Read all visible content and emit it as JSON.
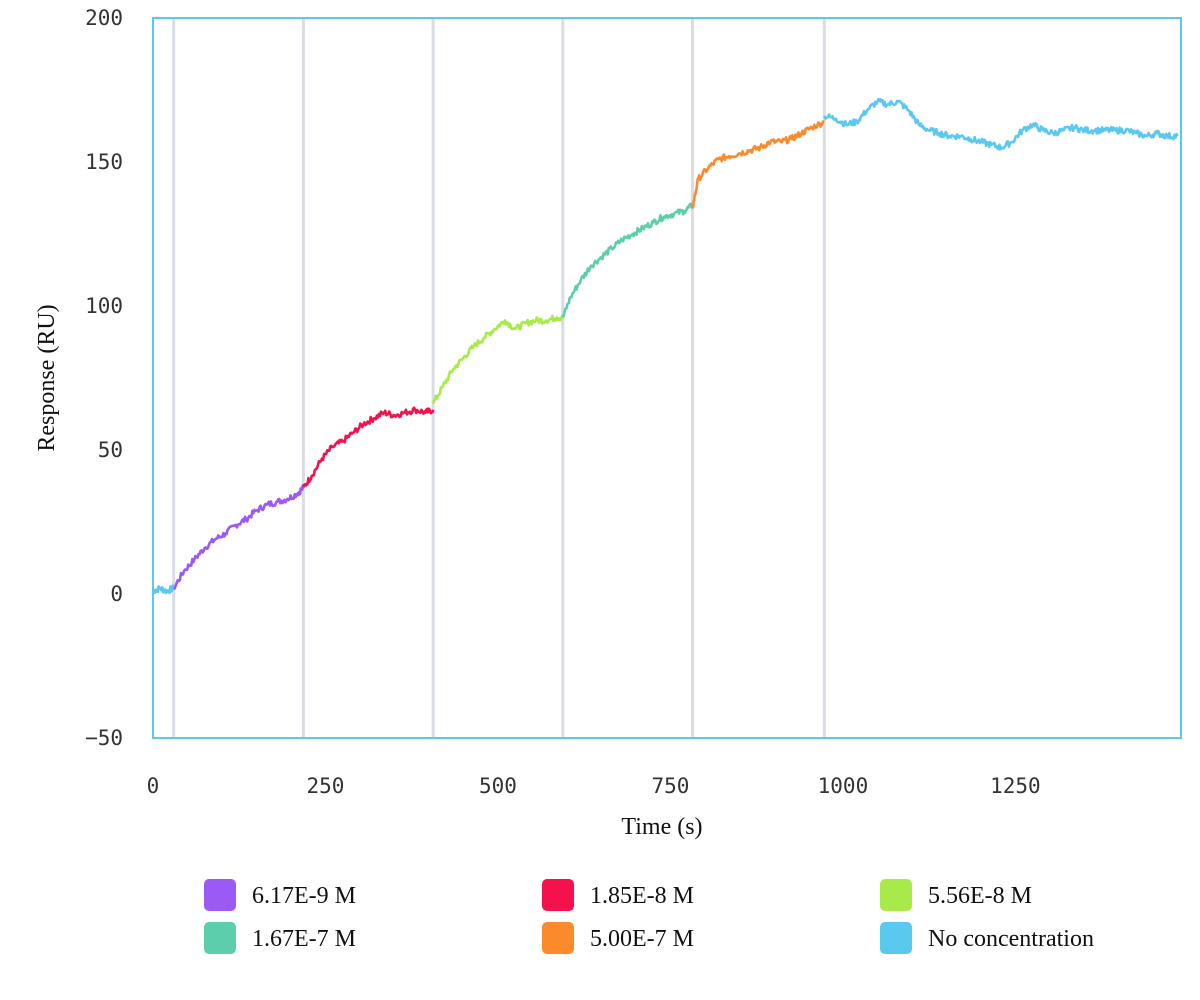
{
  "chart_data": {
    "type": "line",
    "title": "",
    "xlabel": "Time (s)",
    "ylabel": "Response (RU)",
    "xlim": [
      0,
      1490
    ],
    "ylim": [
      -50,
      200
    ],
    "x_ticks": [
      0,
      250,
      500,
      750,
      1000,
      1250
    ],
    "x_tick_labels": [
      "0",
      "250",
      "500",
      "750",
      "1000",
      "1250"
    ],
    "y_ticks": [
      -50,
      0,
      50,
      100,
      150,
      200
    ],
    "y_tick_labels": [
      "−50",
      "0",
      "50",
      "100",
      "150",
      "200"
    ],
    "grid": false,
    "injection_markers": [
      30,
      218,
      406,
      594,
      782,
      973
    ],
    "legend_position": "bottom",
    "series": [
      {
        "name": "No concentration",
        "color": "#5bc8ef",
        "points": [
          [
            0,
            1
          ],
          [
            10,
            2
          ],
          [
            20,
            1
          ],
          [
            30,
            2
          ]
        ]
      },
      {
        "name": "6.17E-9 M",
        "color": "#9b59f5",
        "points": [
          [
            30,
            2
          ],
          [
            45,
            8
          ],
          [
            60,
            12
          ],
          [
            75,
            16
          ],
          [
            90,
            19
          ],
          [
            105,
            21
          ],
          [
            120,
            24
          ],
          [
            135,
            26
          ],
          [
            150,
            29
          ],
          [
            165,
            31
          ],
          [
            180,
            32
          ],
          [
            195,
            33
          ],
          [
            210,
            35
          ],
          [
            218,
            37
          ]
        ]
      },
      {
        "name": "1.85E-8 M",
        "color": "#f5124c",
        "points": [
          [
            218,
            37
          ],
          [
            230,
            41
          ],
          [
            245,
            47
          ],
          [
            260,
            51
          ],
          [
            275,
            53
          ],
          [
            290,
            56
          ],
          [
            305,
            59
          ],
          [
            320,
            61
          ],
          [
            335,
            63
          ],
          [
            350,
            62
          ],
          [
            365,
            63
          ],
          [
            380,
            64
          ],
          [
            395,
            63
          ],
          [
            406,
            64
          ]
        ]
      },
      {
        "name": "5.56E-8 M",
        "color": "#a8ea4a",
        "points": [
          [
            406,
            66
          ],
          [
            420,
            72
          ],
          [
            435,
            78
          ],
          [
            450,
            82
          ],
          [
            465,
            86
          ],
          [
            480,
            89
          ],
          [
            495,
            92
          ],
          [
            510,
            95
          ],
          [
            525,
            92
          ],
          [
            540,
            94
          ],
          [
            555,
            95
          ],
          [
            570,
            95
          ],
          [
            585,
            96
          ],
          [
            594,
            96
          ]
        ]
      },
      {
        "name": "1.67E-7 M",
        "color": "#5dceab",
        "points": [
          [
            594,
            96
          ],
          [
            605,
            103
          ],
          [
            620,
            109
          ],
          [
            635,
            114
          ],
          [
            650,
            117
          ],
          [
            665,
            120
          ],
          [
            680,
            123
          ],
          [
            695,
            125
          ],
          [
            710,
            127
          ],
          [
            725,
            129
          ],
          [
            740,
            131
          ],
          [
            755,
            132
          ],
          [
            770,
            133
          ],
          [
            782,
            135
          ]
        ]
      },
      {
        "name": "5.00E-7 M",
        "color": "#fb8a2c",
        "points": [
          [
            782,
            134
          ],
          [
            790,
            144
          ],
          [
            805,
            148
          ],
          [
            820,
            151
          ],
          [
            835,
            152
          ],
          [
            850,
            153
          ],
          [
            865,
            154
          ],
          [
            880,
            155
          ],
          [
            895,
            157
          ],
          [
            910,
            157
          ],
          [
            925,
            158
          ],
          [
            940,
            160
          ],
          [
            955,
            162
          ],
          [
            973,
            164
          ]
        ]
      },
      {
        "name": "No concentration",
        "color": "#5bc8ef",
        "points": [
          [
            973,
            166
          ],
          [
            990,
            165
          ],
          [
            1005,
            163
          ],
          [
            1020,
            164
          ],
          [
            1035,
            168
          ],
          [
            1050,
            171
          ],
          [
            1065,
            170
          ],
          [
            1080,
            171
          ],
          [
            1095,
            168
          ],
          [
            1110,
            163
          ],
          [
            1125,
            161
          ],
          [
            1140,
            160
          ],
          [
            1155,
            159
          ],
          [
            1170,
            159
          ],
          [
            1185,
            158
          ],
          [
            1200,
            157
          ],
          [
            1215,
            156
          ],
          [
            1230,
            155
          ],
          [
            1245,
            157
          ],
          [
            1260,
            161
          ],
          [
            1275,
            163
          ],
          [
            1290,
            161
          ],
          [
            1305,
            160
          ],
          [
            1320,
            161
          ],
          [
            1335,
            162
          ],
          [
            1350,
            161
          ],
          [
            1365,
            161
          ],
          [
            1380,
            161
          ],
          [
            1395,
            161
          ],
          [
            1410,
            161
          ],
          [
            1425,
            160
          ],
          [
            1440,
            159
          ],
          [
            1455,
            160
          ],
          [
            1470,
            159
          ],
          [
            1485,
            159
          ]
        ]
      }
    ],
    "legend": [
      {
        "label": "6.17E-9 M",
        "color": "#9b59f5"
      },
      {
        "label": "1.85E-8 M",
        "color": "#f5124c"
      },
      {
        "label": "5.56E-8 M",
        "color": "#a8ea4a"
      },
      {
        "label": "1.67E-7 M",
        "color": "#5dceab"
      },
      {
        "label": "5.00E-7 M",
        "color": "#fb8a2c"
      },
      {
        "label": "No concentration",
        "color": "#5bc8ef"
      }
    ],
    "colors": {
      "frame": "#5bc8ef",
      "marker": "#d7dde3"
    }
  }
}
